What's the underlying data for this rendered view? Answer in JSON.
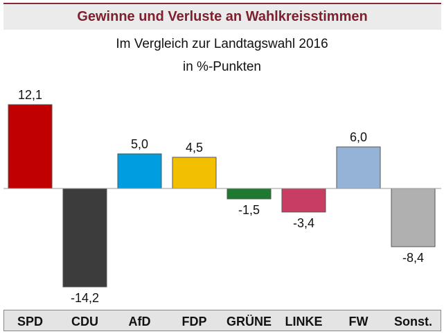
{
  "header": {
    "title": "Gewinne und Verluste an Wahlkreisstimmen"
  },
  "chart_data": {
    "type": "bar",
    "title": "Gewinne und Verluste an Wahlkreisstimmen",
    "subtitle": [
      "Im Vergleich zur Landtagswahl 2016",
      "in %-Punkten"
    ],
    "categories": [
      "SPD",
      "CDU",
      "AfD",
      "FDP",
      "GRÜNE",
      "LINKE",
      "FW",
      "Sonst."
    ],
    "values": [
      12.1,
      -14.2,
      5.0,
      4.5,
      -1.5,
      -3.4,
      6.0,
      -8.4
    ],
    "labels": [
      "12,1",
      "-14,2",
      "5,0",
      "4,5",
      "-1,5",
      "-3,4",
      "6,0",
      "-8,4"
    ],
    "colors": [
      "#c00000",
      "#3c3c3c",
      "#009ee0",
      "#f2c000",
      "#1e7a2e",
      "#c83e62",
      "#95b3d7",
      "#b0b0b0"
    ],
    "xlabel": "",
    "ylabel": "",
    "ylim": [
      -14.2,
      12.1
    ],
    "grid": false,
    "legend": "none"
  }
}
